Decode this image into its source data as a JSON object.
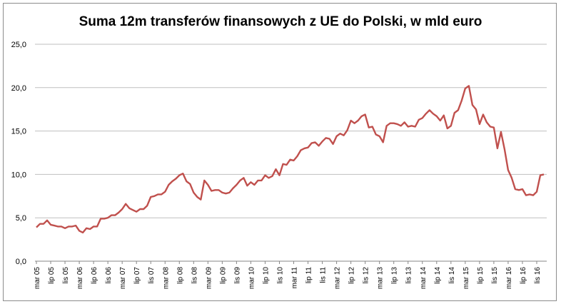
{
  "chart_data": {
    "type": "line",
    "title": "Suma 12m transferów finansowych z UE do Polski, w mld euro",
    "ylim": [
      0,
      25
    ],
    "yticks": [
      "0,0",
      "5,0",
      "10,0",
      "15,0",
      "20,0",
      "25,0"
    ],
    "grid": true,
    "xticks": [
      "mar 05",
      "lip 05",
      "lis 05",
      "mar 06",
      "lip 06",
      "lis 06",
      "mar 07",
      "lip 07",
      "lis 07",
      "mar 08",
      "lip 08",
      "lis 08",
      "mar 09",
      "lip 09",
      "lis 09",
      "mar 10",
      "lip 10",
      "lis 10",
      "mar 11",
      "lip 11",
      "lis 11",
      "mar 12",
      "lip 12",
      "lis 12",
      "mar 13",
      "lip 13",
      "lis 13",
      "mar 14",
      "lip 14",
      "lis 14",
      "mar 15",
      "lip 15",
      "lis 15",
      "mar 16",
      "lip 16",
      "lis 16"
    ],
    "color": "#c0504d",
    "series": [
      {
        "values": [
          3.9,
          4.3,
          4.3,
          4.7,
          4.2,
          4.1,
          4.0,
          4.0,
          3.8,
          4.0,
          4.0,
          4.1,
          3.5,
          3.3,
          3.8,
          3.7,
          4.0,
          4.0,
          4.9,
          4.9,
          5.0,
          5.3,
          5.3,
          5.6,
          6.0,
          6.6,
          6.1,
          5.9,
          5.7,
          6.0,
          6.0,
          6.4,
          7.4,
          7.5,
          7.7,
          7.7,
          8.0,
          8.8,
          9.2,
          9.5,
          9.9,
          10.1,
          9.2,
          8.9,
          7.9,
          7.4,
          7.1,
          9.3,
          8.8,
          8.1,
          8.2,
          8.2,
          7.9,
          7.8,
          7.9,
          8.4,
          8.8,
          9.3,
          9.6,
          8.7,
          9.1,
          8.8,
          9.3,
          9.3,
          9.9,
          9.6,
          9.8,
          10.6,
          9.9,
          11.2,
          11.1,
          11.7,
          11.6,
          12.1,
          12.8,
          13.0,
          13.1,
          13.6,
          13.7,
          13.3,
          13.8,
          14.2,
          14.1,
          13.5,
          14.4,
          14.7,
          14.5,
          15.1,
          16.2,
          15.9,
          16.2,
          16.7,
          16.9,
          15.4,
          15.5,
          14.6,
          14.4,
          13.7,
          15.6,
          15.9,
          15.9,
          15.8,
          15.6,
          16.0,
          15.5,
          15.6,
          15.5,
          16.3,
          16.5,
          17.0,
          17.4,
          17.0,
          16.7,
          16.2,
          16.8,
          15.3,
          15.6,
          17.1,
          17.4,
          18.5,
          19.9,
          20.2,
          18.0,
          17.5,
          15.8,
          16.9,
          16.0,
          15.5,
          15.4,
          13.0,
          14.9,
          12.9,
          10.5,
          9.6,
          8.3,
          8.2,
          8.3,
          7.6,
          7.7,
          7.6,
          8.0,
          9.9,
          10.0
        ]
      }
    ]
  }
}
